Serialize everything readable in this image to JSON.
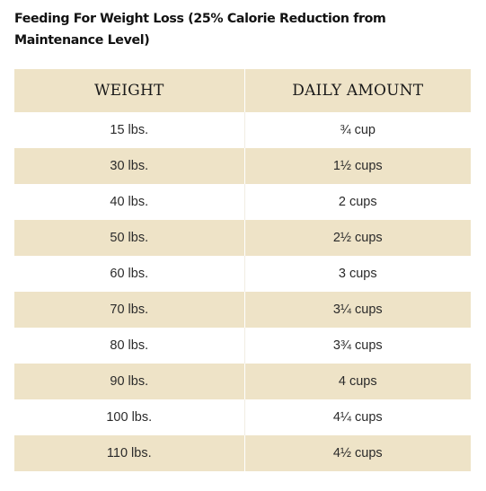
{
  "title": "Feeding For Weight Loss (25% Calorie Reduction from Maintenance Level)",
  "table": {
    "headers": [
      "WEIGHT",
      "DAILY AMOUNT"
    ],
    "rows": [
      {
        "weight": "15 lbs.",
        "amount": "¾ cup"
      },
      {
        "weight": "30 lbs.",
        "amount": "1½ cups"
      },
      {
        "weight": "40 lbs.",
        "amount": "2 cups"
      },
      {
        "weight": "50 lbs.",
        "amount": "2½ cups"
      },
      {
        "weight": "60 lbs.",
        "amount": "3 cups"
      },
      {
        "weight": "70 lbs.",
        "amount": "3¼ cups"
      },
      {
        "weight": "80 lbs.",
        "amount": "3¾ cups"
      },
      {
        "weight": "90 lbs.",
        "amount": "4 cups"
      },
      {
        "weight": "100 lbs.",
        "amount": "4¼ cups"
      },
      {
        "weight": "110 lbs.",
        "amount": "4½ cups"
      }
    ]
  },
  "colors": {
    "header_band": "#eee3c7",
    "stripe": "#eee3c7",
    "background": "#ffffff"
  }
}
